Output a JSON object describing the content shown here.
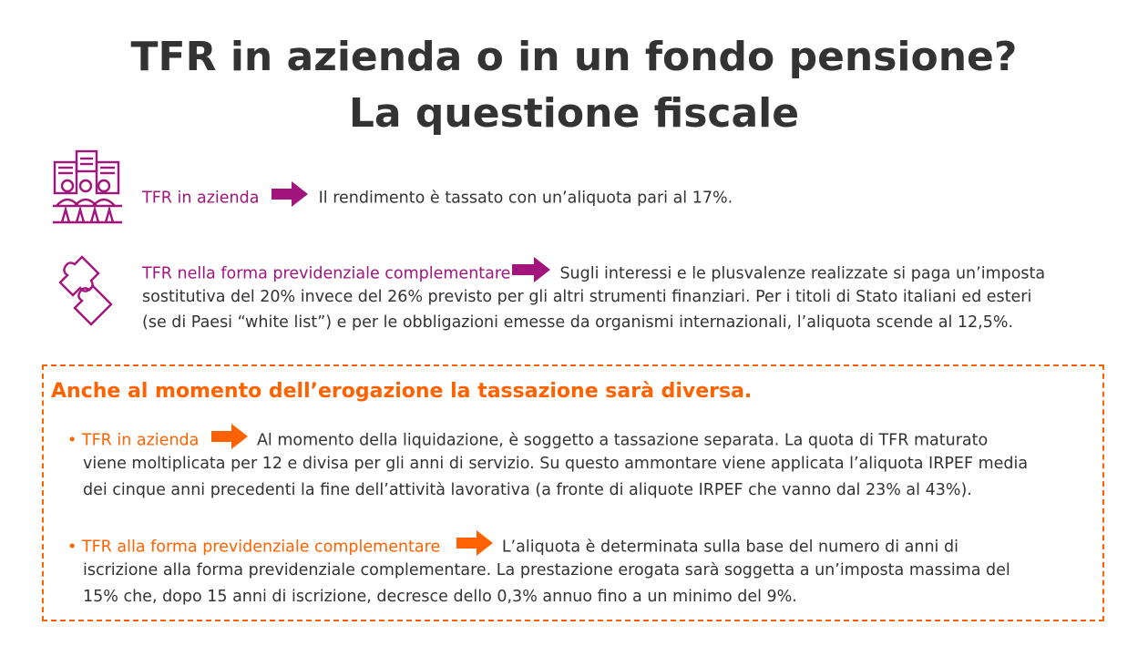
{
  "title": {
    "line1": "TFR in azienda o in un fondo pensione?",
    "line2": "La questione fiscale"
  },
  "colors": {
    "magenta": "#a1157c",
    "orange": "#ff6200",
    "text": "#333333"
  },
  "section1": {
    "icon": "company-building-icon",
    "label": "TFR in azienda",
    "text": "Il rendimento è tassato con un’aliquota pari al 17%."
  },
  "section2": {
    "icon": "puzzle-pieces-icon",
    "label": "TFR nella forma previdenziale complementare",
    "line1": "Sugli interessi e le plusvalenze realizzate si paga un’imposta",
    "line2": "sostitutiva del 20% invece del 26% previsto per gli altri strumenti finanziari. Per i titoli di Stato italiani ed esteri",
    "line3": "(se di Paesi “white list”) e per le obbligazioni emesse da organismi internazionali, l’aliquota scende al 12,5%."
  },
  "box": {
    "title": "Anche al momento dell’erogazione la tassazione sarà diversa.",
    "item1": {
      "label": "TFR in azienda",
      "line1": "Al momento della liquidazione, è soggetto a tassazione separata. La quota di TFR maturato",
      "line2": "viene moltiplicata per 12 e divisa per gli anni di servizio. Su questo ammontare viene applicata l’aliquota IRPEF media",
      "line3": "dei cinque anni precedenti la fine dell’attività lavorativa (a fronte di aliquote IRPEF che vanno dal 23% al 43%)."
    },
    "item2": {
      "label": "TFR alla forma previdenziale complementare",
      "line1": "L’aliquota è determinata sulla base del numero di anni di",
      "line2": "iscrizione alla forma previdenziale complementare. La prestazione erogata sarà soggetta a un’imposta massima del",
      "line3": "15% che, dopo 15 anni di iscrizione, decresce dello 0,3% annuo fino a un minimo del 9%."
    }
  }
}
